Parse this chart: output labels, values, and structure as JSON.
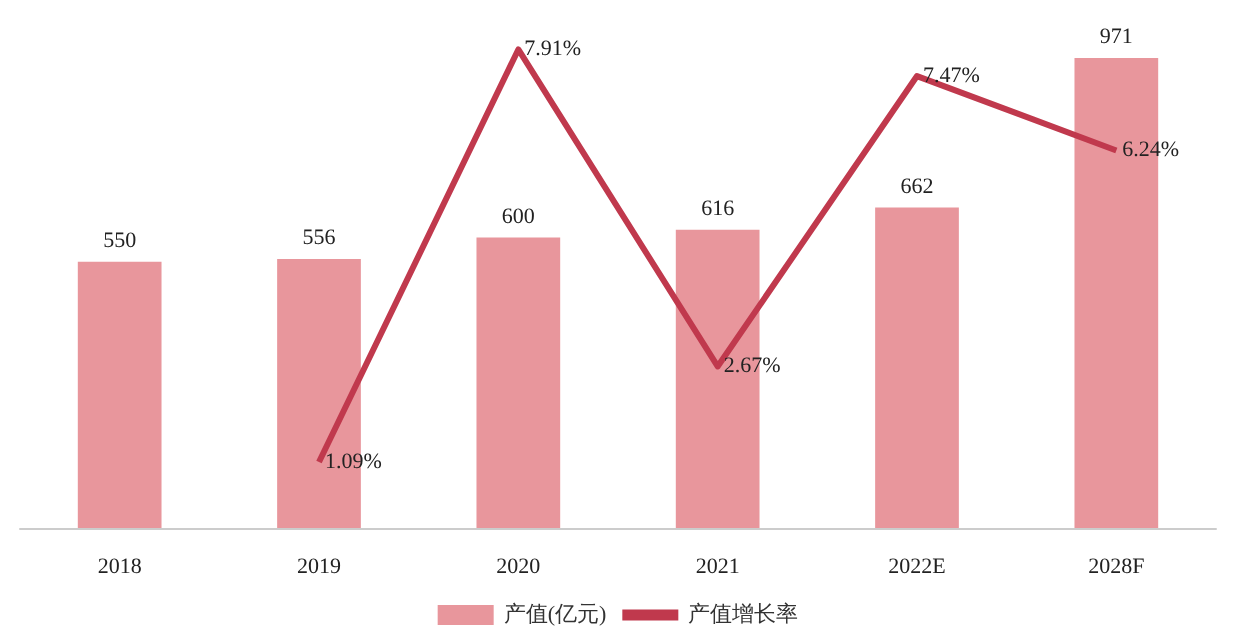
{
  "chart_data": {
    "type": "bar",
    "categories": [
      "2018",
      "2019",
      "2020",
      "2021",
      "2022E",
      "2028F"
    ],
    "series": [
      {
        "name": "产值(亿元)",
        "color": "#e8969c",
        "values": [
          550,
          556,
          600,
          616,
          662,
          971
        ],
        "value_labels": [
          "550",
          "556",
          "600",
          "616",
          "662",
          "971"
        ]
      },
      {
        "name": "产值增长率",
        "type": "line",
        "axis": "y2",
        "color": "#c0394d",
        "values": [
          null,
          1.09,
          7.91,
          2.67,
          7.47,
          6.24
        ],
        "value_labels": [
          null,
          "1.09%",
          "7.91%",
          "2.67%",
          "7.47%",
          "6.24%"
        ]
      }
    ],
    "legend": "bottom",
    "marker": "none",
    "line_style": "solid"
  }
}
